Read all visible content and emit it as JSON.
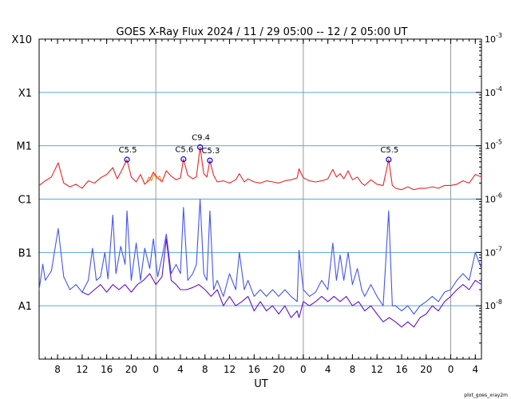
{
  "chart_data": {
    "type": "line",
    "title": "GOES X-Ray Flux   2024 / 11 / 29   05:00 -- 12 /  2   05:00   UT",
    "xlabel": "UT",
    "footer": "plot_goes_xray2m",
    "y_scale": "log",
    "ylim": [
      1e-09,
      0.001
    ],
    "xlim": [
      0,
      72
    ],
    "x_unit": "hours since 2024-11-29 05:00 UT",
    "y_class_ticks": [
      {
        "label": "X10",
        "value": 0.001
      },
      {
        "label": "X1",
        "value": 0.0001
      },
      {
        "label": "M1",
        "value": 1e-05
      },
      {
        "label": "C1",
        "value": 1e-06
      },
      {
        "label": "B1",
        "value": 1e-07
      },
      {
        "label": "A1",
        "value": 1e-08
      }
    ],
    "y_right_ticks": [
      {
        "base": "10",
        "exp": "-3",
        "value": 0.001
      },
      {
        "base": "10",
        "exp": "-4",
        "value": 0.0001
      },
      {
        "base": "10",
        "exp": "-5",
        "value": 1e-05
      },
      {
        "base": "10",
        "exp": "-6",
        "value": 1e-06
      },
      {
        "base": "10",
        "exp": "-7",
        "value": 1e-07
      },
      {
        "base": "10",
        "exp": "-8",
        "value": 1e-08
      }
    ],
    "x_ticks": [
      {
        "label": "8",
        "x": 3
      },
      {
        "label": "12",
        "x": 7
      },
      {
        "label": "16",
        "x": 11
      },
      {
        "label": "20",
        "x": 15
      },
      {
        "label": "0",
        "x": 19
      },
      {
        "label": "4",
        "x": 23
      },
      {
        "label": "8",
        "x": 27
      },
      {
        "label": "12",
        "x": 31
      },
      {
        "label": "16",
        "x": 35
      },
      {
        "label": "20",
        "x": 39
      },
      {
        "label": "0",
        "x": 43
      },
      {
        "label": "4",
        "x": 47
      },
      {
        "label": "8",
        "x": 51
      },
      {
        "label": "12",
        "x": 55
      },
      {
        "label": "16",
        "x": 59
      },
      {
        "label": "20",
        "x": 63
      },
      {
        "label": "0",
        "x": 67
      },
      {
        "label": "4",
        "x": 71
      }
    ],
    "day_boundaries": [
      19,
      43,
      67
    ],
    "grid": true,
    "flare_annotations": [
      {
        "label": "C5.5",
        "x": 14.3,
        "flux": 5.5e-06
      },
      {
        "label": "C5.6",
        "x": 23.5,
        "flux": 5.6e-06
      },
      {
        "label": "C9.4",
        "x": 26.2,
        "flux": 9.4e-06
      },
      {
        "label": "C5.3",
        "x": 27.8,
        "flux": 5.3e-06
      },
      {
        "label": "C5.5",
        "x": 56.9,
        "flux": 5.5e-06
      }
    ],
    "series": [
      {
        "color": "#ee2222",
        "points": [
          [
            0,
            1.8e-06
          ],
          [
            1,
            2.2e-06
          ],
          [
            2,
            2.6e-06
          ],
          [
            3.1,
            4.8e-06
          ],
          [
            4,
            2e-06
          ],
          [
            5,
            1.7e-06
          ],
          [
            6,
            1.9e-06
          ],
          [
            7,
            1.6e-06
          ],
          [
            8,
            2.2e-06
          ],
          [
            9,
            2e-06
          ],
          [
            10,
            2.5e-06
          ],
          [
            11,
            2.9e-06
          ],
          [
            12,
            3.9e-06
          ],
          [
            12.7,
            2.4e-06
          ],
          [
            13.3,
            3.2e-06
          ],
          [
            14.3,
            5.5e-06
          ],
          [
            15,
            2.6e-06
          ],
          [
            15.8,
            2.1e-06
          ],
          [
            16.5,
            2.9e-06
          ],
          [
            17.2,
            1.9e-06
          ],
          [
            18,
            2.3e-06
          ],
          [
            18.6,
            3.2e-06
          ],
          [
            19.3,
            2.5e-06
          ],
          [
            20,
            2.1e-06
          ],
          [
            20.7,
            3.4e-06
          ],
          [
            21.5,
            2.7e-06
          ],
          [
            22.3,
            2.3e-06
          ],
          [
            23,
            2.5e-06
          ],
          [
            23.5,
            5.6e-06
          ],
          [
            24.2,
            2.8e-06
          ],
          [
            25,
            2.4e-06
          ],
          [
            25.6,
            2.6e-06
          ],
          [
            26.2,
            9.4e-06
          ],
          [
            26.8,
            3e-06
          ],
          [
            27.3,
            2.6e-06
          ],
          [
            27.8,
            5.3e-06
          ],
          [
            28.4,
            2.8e-06
          ],
          [
            29,
            2.1e-06
          ],
          [
            30,
            2.2e-06
          ],
          [
            31,
            2e-06
          ],
          [
            32,
            2.3e-06
          ],
          [
            32.6,
            3e-06
          ],
          [
            33.4,
            2.1e-06
          ],
          [
            34,
            2.4e-06
          ],
          [
            35,
            2.1e-06
          ],
          [
            36,
            2e-06
          ],
          [
            37,
            2.2e-06
          ],
          [
            38,
            2.1e-06
          ],
          [
            39,
            2e-06
          ],
          [
            40,
            2.2e-06
          ],
          [
            41,
            2.3e-06
          ],
          [
            42,
            2.5e-06
          ],
          [
            42.3,
            3.7e-06
          ],
          [
            43,
            2.5e-06
          ],
          [
            44,
            2.2e-06
          ],
          [
            45,
            2.1e-06
          ],
          [
            46,
            2.2e-06
          ],
          [
            47,
            2.4e-06
          ],
          [
            47.8,
            3.6e-06
          ],
          [
            48.4,
            2.6e-06
          ],
          [
            49,
            3e-06
          ],
          [
            49.6,
            2.4e-06
          ],
          [
            50.3,
            3.4e-06
          ],
          [
            51,
            2.3e-06
          ],
          [
            51.8,
            2.6e-06
          ],
          [
            52.5,
            2e-06
          ],
          [
            53,
            1.8e-06
          ],
          [
            54,
            2.3e-06
          ],
          [
            55,
            1.9e-06
          ],
          [
            56,
            1.8e-06
          ],
          [
            56.9,
            5.5e-06
          ],
          [
            57.5,
            1.8e-06
          ],
          [
            58,
            1.6e-06
          ],
          [
            59,
            1.5e-06
          ],
          [
            60,
            1.7e-06
          ],
          [
            61,
            1.5e-06
          ],
          [
            62,
            1.6e-06
          ],
          [
            63,
            1.6e-06
          ],
          [
            64,
            1.7e-06
          ],
          [
            65,
            1.6e-06
          ],
          [
            66,
            1.8e-06
          ],
          [
            67,
            1.8e-06
          ],
          [
            68,
            1.9e-06
          ],
          [
            69,
            2.2e-06
          ],
          [
            70,
            2e-06
          ],
          [
            71,
            2.9e-06
          ],
          [
            72,
            2.6e-06
          ]
        ]
      },
      {
        "color": "#ee8822",
        "points": [
          [
            17.4,
            2e-06
          ],
          [
            17.9,
            2.6e-06
          ],
          [
            18.3,
            2.2e-06
          ],
          [
            18.7,
            3e-06
          ],
          [
            19.1,
            2.4e-06
          ],
          [
            19.6,
            2.7e-06
          ],
          [
            20,
            2.1e-06
          ]
        ]
      },
      {
        "color": "#4455ee",
        "points": [
          [
            0,
            2e-08
          ],
          [
            0.6,
            6e-08
          ],
          [
            1,
            3e-08
          ],
          [
            2,
            4.5e-08
          ],
          [
            3.1,
            2.8e-07
          ],
          [
            4,
            3.5e-08
          ],
          [
            5,
            2e-08
          ],
          [
            6,
            2.5e-08
          ],
          [
            7,
            1.8e-08
          ],
          [
            8,
            3e-08
          ],
          [
            8.7,
            1.2e-07
          ],
          [
            9.3,
            3e-08
          ],
          [
            10,
            3.5e-08
          ],
          [
            10.7,
            1e-07
          ],
          [
            11.2,
            3.2e-08
          ],
          [
            12,
            5e-07
          ],
          [
            12.5,
            4e-08
          ],
          [
            13.3,
            1.3e-07
          ],
          [
            14,
            6e-08
          ],
          [
            14.3,
            6e-07
          ],
          [
            15,
            3e-08
          ],
          [
            15.8,
            1.5e-07
          ],
          [
            16.5,
            3e-08
          ],
          [
            17.2,
            1.2e-07
          ],
          [
            18,
            5e-08
          ],
          [
            18.6,
            1.8e-07
          ],
          [
            19.3,
            3.5e-08
          ],
          [
            20,
            8e-08
          ],
          [
            20.7,
            2.2e-07
          ],
          [
            21.5,
            4e-08
          ],
          [
            22.3,
            6e-08
          ],
          [
            23,
            4e-08
          ],
          [
            23.5,
            7e-07
          ],
          [
            24.2,
            3e-08
          ],
          [
            25,
            4e-08
          ],
          [
            25.6,
            6e-08
          ],
          [
            26.2,
            1e-06
          ],
          [
            26.8,
            4e-08
          ],
          [
            27.3,
            3e-08
          ],
          [
            27.8,
            6e-07
          ],
          [
            28.4,
            2e-08
          ],
          [
            29,
            3e-08
          ],
          [
            30,
            1.5e-08
          ],
          [
            31,
            4e-08
          ],
          [
            32,
            2e-08
          ],
          [
            32.6,
            1e-07
          ],
          [
            33.4,
            2e-08
          ],
          [
            34,
            3e-08
          ],
          [
            35,
            1.5e-08
          ],
          [
            36,
            2e-08
          ],
          [
            37,
            1.5e-08
          ],
          [
            38,
            2e-08
          ],
          [
            39,
            1.5e-08
          ],
          [
            40,
            2e-08
          ],
          [
            41,
            1.5e-08
          ],
          [
            42,
            1.2e-08
          ],
          [
            42.3,
            1.1e-07
          ],
          [
            43,
            2e-08
          ],
          [
            44,
            1.5e-08
          ],
          [
            45,
            1.8e-08
          ],
          [
            46,
            3e-08
          ],
          [
            47,
            2e-08
          ],
          [
            47.8,
            1.5e-07
          ],
          [
            48.4,
            3e-08
          ],
          [
            49,
            9e-08
          ],
          [
            49.6,
            3e-08
          ],
          [
            50.3,
            1e-07
          ],
          [
            51,
            2.5e-08
          ],
          [
            51.8,
            5e-08
          ],
          [
            52.5,
            2e-08
          ],
          [
            53,
            1.5e-08
          ],
          [
            54,
            2.5e-08
          ],
          [
            55,
            1.5e-08
          ],
          [
            56,
            1e-08
          ],
          [
            56.9,
            6e-07
          ],
          [
            57.5,
            1e-08
          ],
          [
            58,
            1e-08
          ],
          [
            59,
            8e-09
          ],
          [
            60,
            1e-08
          ],
          [
            61,
            7e-09
          ],
          [
            62,
            1e-08
          ],
          [
            63,
            1.2e-08
          ],
          [
            64,
            1.5e-08
          ],
          [
            65,
            1.2e-08
          ],
          [
            66,
            1.8e-08
          ],
          [
            67,
            2e-08
          ],
          [
            68,
            3e-08
          ],
          [
            69,
            4e-08
          ],
          [
            70,
            3e-08
          ],
          [
            71,
            1e-07
          ],
          [
            72,
            5e-08
          ]
        ]
      },
      {
        "color": "#6611cc",
        "points": [
          [
            7,
            1.8e-08
          ],
          [
            8,
            1.6e-08
          ],
          [
            9,
            2e-08
          ],
          [
            10,
            2.5e-08
          ],
          [
            11,
            1.8e-08
          ],
          [
            12,
            2.5e-08
          ],
          [
            13,
            2e-08
          ],
          [
            14,
            2.5e-08
          ],
          [
            15,
            1.8e-08
          ],
          [
            16,
            2.5e-08
          ],
          [
            17,
            3e-08
          ],
          [
            18,
            4e-08
          ],
          [
            19,
            2.5e-08
          ],
          [
            20,
            3.5e-08
          ],
          [
            20.7,
            1.8e-07
          ],
          [
            21.5,
            3e-08
          ],
          [
            22.3,
            2.5e-08
          ],
          [
            23,
            2e-08
          ],
          [
            24,
            2e-08
          ],
          [
            25,
            2.2e-08
          ],
          [
            26,
            2.5e-08
          ],
          [
            27,
            2e-08
          ],
          [
            28,
            1.5e-08
          ],
          [
            29,
            2e-08
          ],
          [
            30,
            1e-08
          ],
          [
            31,
            1.5e-08
          ],
          [
            32,
            1e-08
          ],
          [
            33,
            1.2e-08
          ],
          [
            34,
            1.5e-08
          ],
          [
            35,
            8e-09
          ],
          [
            36,
            1.2e-08
          ],
          [
            37,
            8e-09
          ],
          [
            38,
            1e-08
          ],
          [
            39,
            7e-09
          ],
          [
            40,
            1e-08
          ],
          [
            41,
            6e-09
          ],
          [
            42,
            8e-09
          ],
          [
            42.3,
            6e-09
          ],
          [
            43,
            1.2e-08
          ],
          [
            44,
            1e-08
          ],
          [
            45,
            1.2e-08
          ],
          [
            46,
            1.5e-08
          ],
          [
            47,
            1.2e-08
          ],
          [
            48,
            1.5e-08
          ],
          [
            49,
            1.2e-08
          ],
          [
            50,
            1.5e-08
          ],
          [
            51,
            1e-08
          ],
          [
            52,
            1.2e-08
          ],
          [
            53,
            8e-09
          ],
          [
            54,
            1e-08
          ],
          [
            55,
            7e-09
          ],
          [
            56,
            5e-09
          ],
          [
            57,
            6e-09
          ],
          [
            58,
            5e-09
          ],
          [
            59,
            4e-09
          ],
          [
            60,
            5e-09
          ],
          [
            61,
            4e-09
          ],
          [
            62,
            6e-09
          ],
          [
            63,
            7e-09
          ],
          [
            64,
            1e-08
          ],
          [
            65,
            8e-09
          ],
          [
            66,
            1.2e-08
          ],
          [
            67,
            1.5e-08
          ],
          [
            68,
            2e-08
          ],
          [
            69,
            2.5e-08
          ],
          [
            70,
            2e-08
          ],
          [
            71,
            3e-08
          ],
          [
            72,
            2.5e-08
          ]
        ]
      }
    ]
  }
}
